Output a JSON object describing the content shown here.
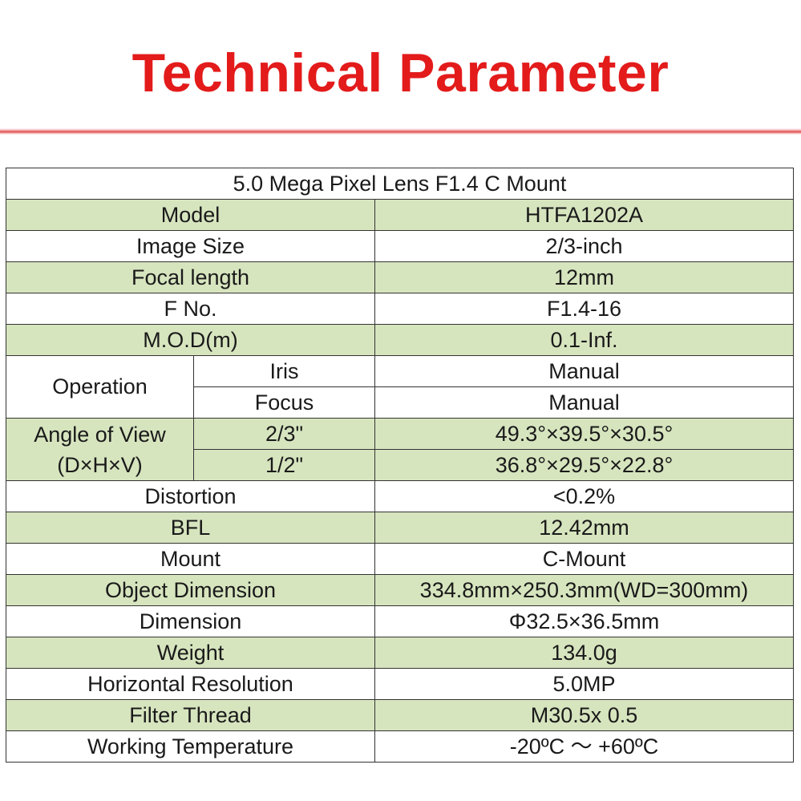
{
  "page": {
    "title": "Technical Parameter",
    "title_color": "#e31b1b",
    "accent_rule_color": "#e64a4a",
    "row_shade_color": "#d7e5bf"
  },
  "table": {
    "caption": "5.0 Mega Pixel Lens F1.4 C Mount",
    "rows": [
      {
        "label": "Model",
        "value": "HTFA1202A"
      },
      {
        "label": "Image Size",
        "value": "2/3-inch"
      },
      {
        "label": "Focal length",
        "value": "12mm"
      },
      {
        "label": "F No.",
        "value": "F1.4-16"
      },
      {
        "label": "M.O.D(m)",
        "value": "0.1-Inf."
      }
    ],
    "operation": {
      "label": "Operation",
      "iris": {
        "label": "Iris",
        "value": "Manual"
      },
      "focus": {
        "label": "Focus",
        "value": "Manual"
      }
    },
    "angle_of_view": {
      "label_line1": "Angle of View",
      "label_line2": "(D×H×V)",
      "rows": [
        {
          "label": "2/3\"",
          "value": "49.3°×39.5°×30.5°"
        },
        {
          "label": "1/2\"",
          "value": "36.8°×29.5°×22.8°"
        }
      ]
    },
    "rows_after": [
      {
        "label": "Distortion",
        "value": "<0.2%"
      },
      {
        "label": "BFL",
        "value": "12.42mm"
      },
      {
        "label": "Mount",
        "value": "C-Mount"
      },
      {
        "label": "Object Dimension",
        "value": "334.8mm×250.3mm(WD=300mm)"
      },
      {
        "label": "Dimension",
        "value": "Φ32.5×36.5mm"
      },
      {
        "label": "Weight",
        "value": "134.0g"
      },
      {
        "label": "Horizontal Resolution",
        "value": "5.0MP"
      },
      {
        "label": "Filter Thread",
        "value": "M30.5x 0.5"
      },
      {
        "label": "Working Temperature",
        "value": "-20ºC ～ +60ºC"
      }
    ]
  }
}
